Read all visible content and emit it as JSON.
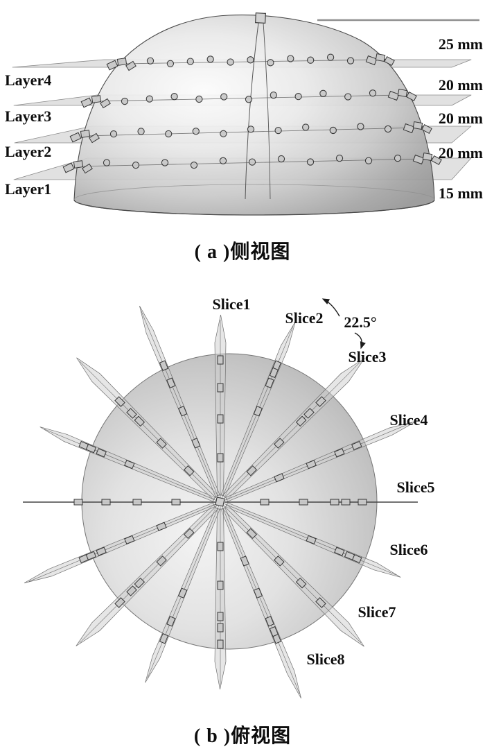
{
  "figure": {
    "caption_a": "( a )侧视图",
    "caption_b": "( b )俯视图"
  },
  "side_view": {
    "layer_labels": [
      "Layer4",
      "Layer3",
      "Layer2",
      "Layer1"
    ],
    "distance_labels": [
      "25 mm",
      "20 mm",
      "20 mm",
      "20 mm",
      "15 mm"
    ],
    "layer_count": 4
  },
  "top_view": {
    "slice_labels": [
      "Slice1",
      "Slice2",
      "Slice3",
      "Slice4",
      "Slice5",
      "Slice6",
      "Slice7",
      "Slice8"
    ],
    "angle_label": "22.5°",
    "angle_step_deg": 22.5,
    "slice_count": 8
  },
  "colors": {
    "text": "#0d0d0d",
    "dome_light": "#fbfbfb",
    "dome_mid": "#dcdcdc",
    "dome_dark": "#989898",
    "plane_fill": "#d9d9d9",
    "plane_edge": "#8a8a8a",
    "blade_fill": "#cdcdcd",
    "blade_edge": "#707070",
    "sensor_fill": "#c9c9c9",
    "sensor_edge": "#2e2e2e",
    "line_gray": "#8f8f8f"
  }
}
